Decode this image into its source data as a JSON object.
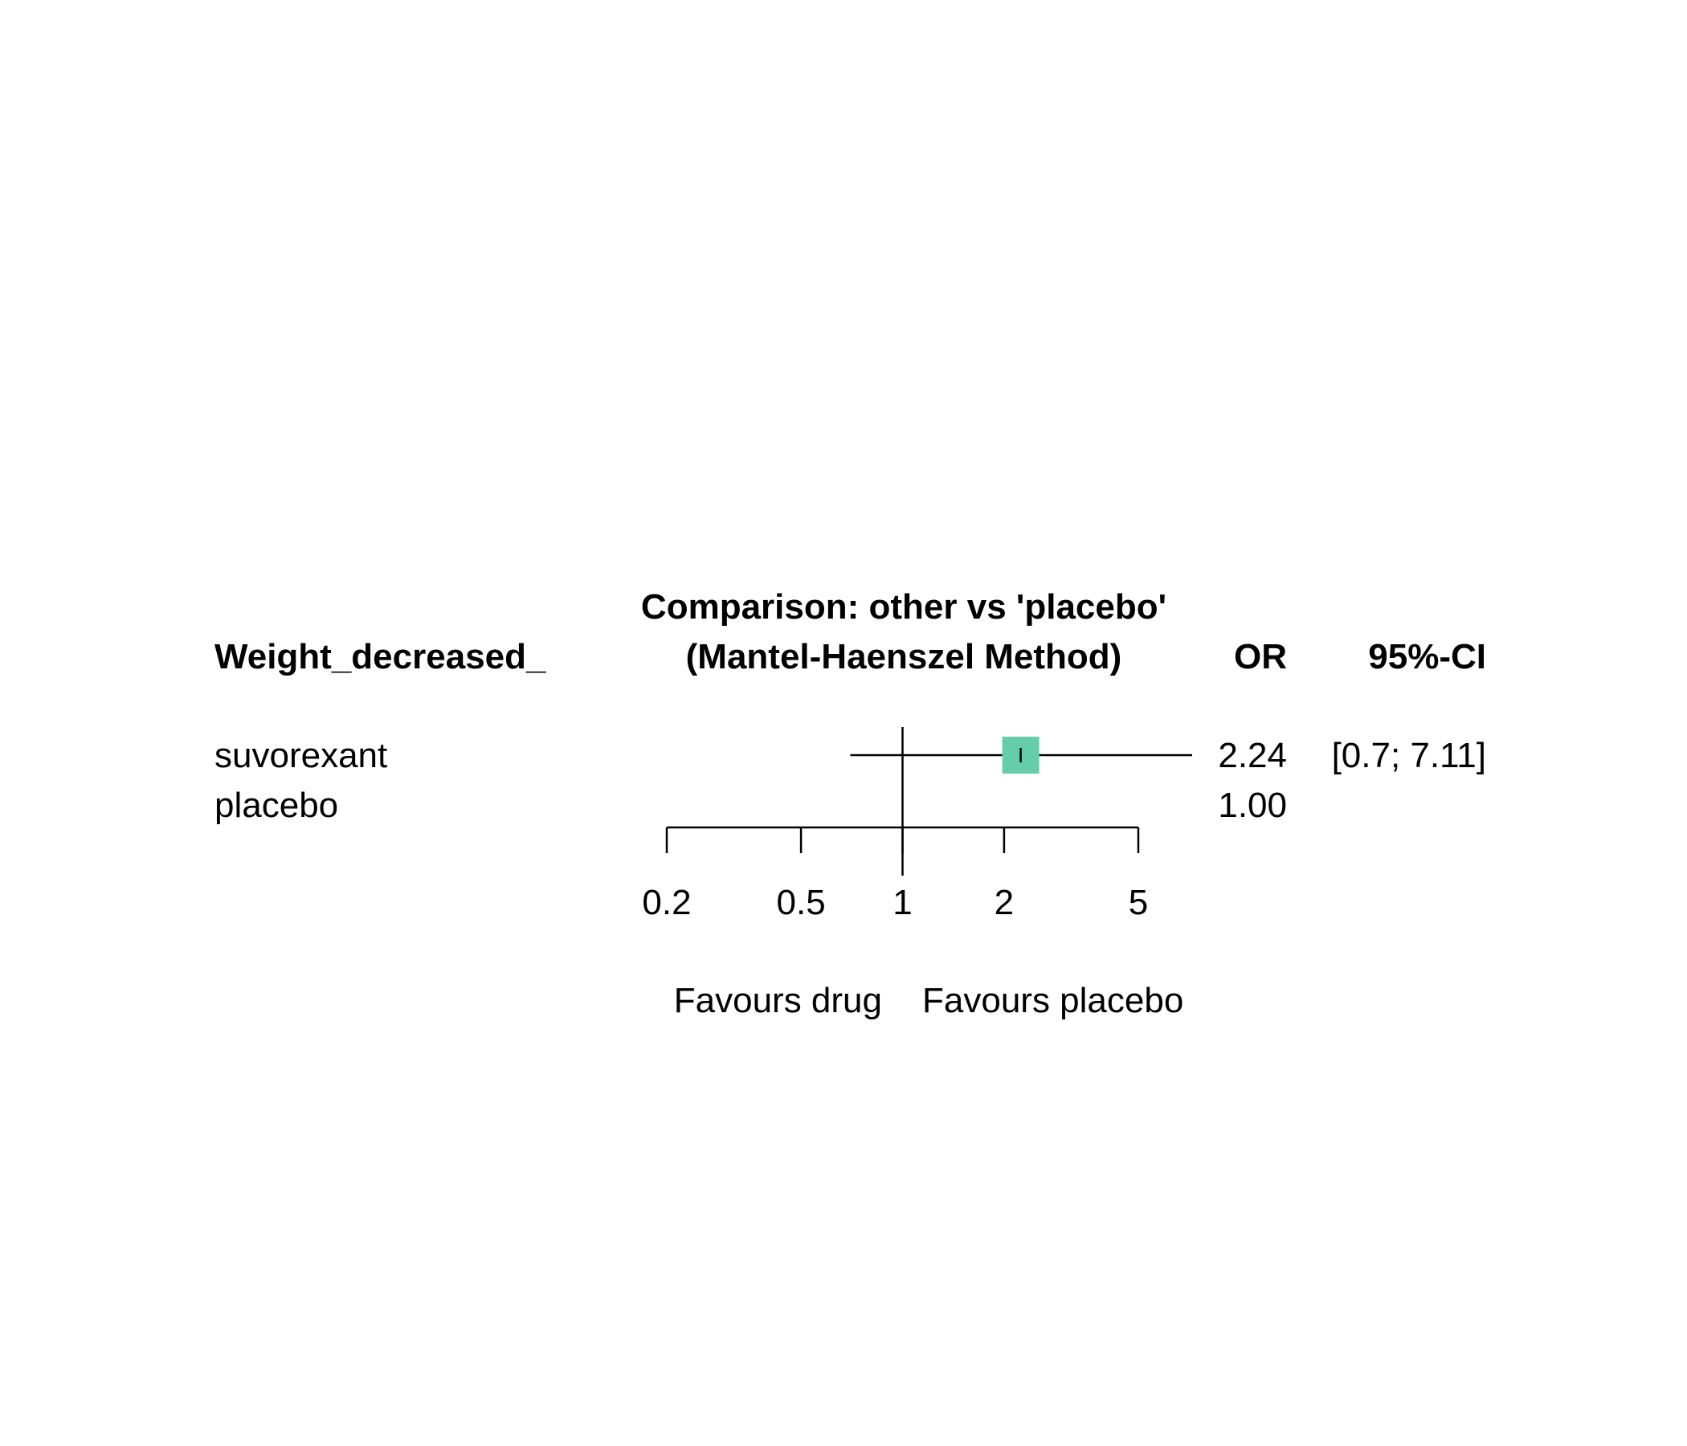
{
  "chart_data": {
    "type": "forest",
    "title": "Comparison: other vs 'placebo'",
    "subtitle": "(Mantel-Haenszel Method)",
    "outcome_label": "Weight_decreased_",
    "columns": [
      "OR",
      "95%-CI"
    ],
    "rows": [
      {
        "label": "suvorexant",
        "or": 2.24,
        "or_text": "2.24",
        "ci_low": 0.7,
        "ci_high": 7.11,
        "ci_text": "[0.7; 7.11]"
      },
      {
        "label": "placebo",
        "or": 1.0,
        "or_text": "1.00",
        "ci_low": null,
        "ci_high": null,
        "ci_text": ""
      }
    ],
    "x_scale": "log",
    "xlim": [
      0.2,
      5
    ],
    "xticks": [
      0.2,
      0.5,
      1,
      2,
      5
    ],
    "xtick_labels": [
      "0.2",
      "0.5",
      "1",
      "2",
      "5"
    ],
    "reference_line": 1,
    "favours_left": "Favours drug",
    "favours_right": "Favours placebo",
    "box_color": "#66CDAA",
    "line_color": "#000000"
  }
}
